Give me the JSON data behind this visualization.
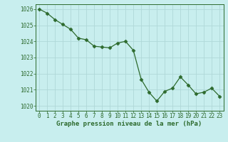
{
  "x": [
    0,
    1,
    2,
    3,
    4,
    5,
    6,
    7,
    8,
    9,
    10,
    11,
    12,
    13,
    14,
    15,
    16,
    17,
    18,
    19,
    20,
    21,
    22,
    23
  ],
  "y": [
    1026.0,
    1025.75,
    1025.35,
    1025.05,
    1024.75,
    1024.2,
    1024.1,
    1023.7,
    1023.65,
    1023.6,
    1023.9,
    1024.0,
    1023.45,
    1021.65,
    1020.85,
    1020.3,
    1020.9,
    1021.1,
    1021.8,
    1021.3,
    1020.75,
    1020.85,
    1021.1,
    1020.6
  ],
  "line_color": "#2d6a2d",
  "marker": "D",
  "marker_size": 2.5,
  "marker_edge_width": 0.5,
  "line_width": 0.9,
  "bg_color": "#c8eeee",
  "grid_color": "#b0d8d8",
  "ylim": [
    1019.7,
    1026.3
  ],
  "xlim": [
    -0.5,
    23.5
  ],
  "yticks": [
    1020,
    1021,
    1022,
    1023,
    1024,
    1025,
    1026
  ],
  "xticks": [
    0,
    1,
    2,
    3,
    4,
    5,
    6,
    7,
    8,
    9,
    10,
    11,
    12,
    13,
    14,
    15,
    16,
    17,
    18,
    19,
    20,
    21,
    22,
    23
  ],
  "xlabel": "Graphe pression niveau de la mer (hPa)",
  "xlabel_color": "#2d6a2d",
  "tick_color": "#2d6a2d",
  "axis_color": "#2d6a2d",
  "tick_fontsize": 5.5,
  "xlabel_fontsize": 6.5
}
